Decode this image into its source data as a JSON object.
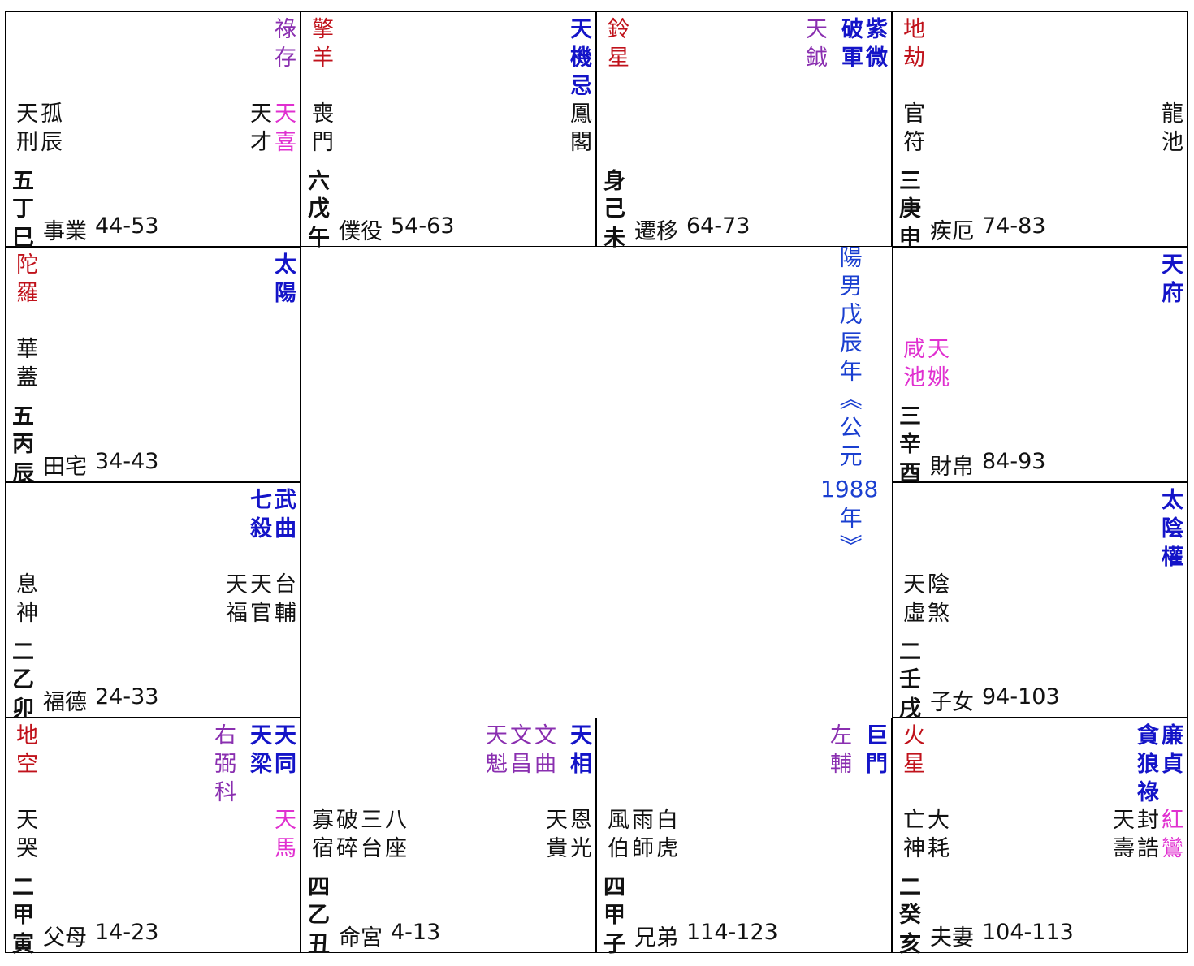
{
  "palaces": [
    {
      "row": 0,
      "col": 0,
      "top_left": [],
      "minor": [
        {
          "name": "祿存",
          "tone": "purple"
        }
      ],
      "major": [],
      "mid_left": [
        {
          "name": "天刑",
          "tone": "black"
        },
        {
          "name": "孤辰",
          "tone": "black"
        }
      ],
      "mid_right": [
        {
          "name": "天才",
          "tone": "black"
        },
        {
          "name": "天喜",
          "tone": "magenta"
        }
      ],
      "ju": "五",
      "stem": "丁",
      "branch": "巳",
      "name": "事業",
      "age": "44-53"
    },
    {
      "row": 0,
      "col": 1,
      "top_left": [
        {
          "name": "擎羊",
          "tone": "red"
        }
      ],
      "minor": [],
      "major": [
        {
          "name": "天機忌",
          "tone": "blue"
        }
      ],
      "mid_left": [
        {
          "name": "喪門",
          "tone": "black"
        }
      ],
      "mid_right": [
        {
          "name": "鳳閣",
          "tone": "black"
        }
      ],
      "ju": "六",
      "stem": "戊",
      "branch": "午",
      "name": "僕役",
      "age": "54-63"
    },
    {
      "row": 0,
      "col": 2,
      "top_left": [
        {
          "name": "鈴星",
          "tone": "red"
        }
      ],
      "minor": [
        {
          "name": "天鉞",
          "tone": "purple"
        }
      ],
      "major": [
        {
          "name": "破軍",
          "tone": "blue"
        },
        {
          "name": "紫微",
          "tone": "blue"
        }
      ],
      "mid_left": [],
      "mid_right": [],
      "ju": "身",
      "stem": "己",
      "branch": "未",
      "name": "遷移",
      "age": "64-73"
    },
    {
      "row": 0,
      "col": 3,
      "top_left": [
        {
          "name": "地劫",
          "tone": "red"
        }
      ],
      "minor": [],
      "major": [],
      "mid_left": [
        {
          "name": "官符",
          "tone": "black"
        }
      ],
      "mid_right": [
        {
          "name": "龍池",
          "tone": "black"
        }
      ],
      "ju": "三",
      "stem": "庚",
      "branch": "申",
      "name": "疾厄",
      "age": "74-83"
    },
    {
      "row": 1,
      "col": 0,
      "top_left": [
        {
          "name": "陀羅",
          "tone": "red"
        }
      ],
      "minor": [],
      "major": [
        {
          "name": "太陽",
          "tone": "blue"
        }
      ],
      "mid_left": [
        {
          "name": "華蓋",
          "tone": "black"
        }
      ],
      "mid_right": [],
      "ju": "五",
      "stem": "丙",
      "branch": "辰",
      "name": "田宅",
      "age": "34-43"
    },
    {
      "row": 1,
      "col": 3,
      "top_left": [],
      "minor": [],
      "major": [
        {
          "name": "天府",
          "tone": "blue"
        }
      ],
      "mid_left": [
        {
          "name": "咸池",
          "tone": "magenta"
        },
        {
          "name": "天姚",
          "tone": "magenta"
        }
      ],
      "mid_right": [],
      "ju": "三",
      "stem": "辛",
      "branch": "酉",
      "name": "財帛",
      "age": "84-93"
    },
    {
      "row": 2,
      "col": 0,
      "top_left": [],
      "minor": [],
      "major": [
        {
          "name": "七殺",
          "tone": "blue"
        },
        {
          "name": "武曲",
          "tone": "blue"
        }
      ],
      "mid_left": [
        {
          "name": "息神",
          "tone": "black"
        }
      ],
      "mid_right": [
        {
          "name": "天福",
          "tone": "black"
        },
        {
          "name": "天官",
          "tone": "black"
        },
        {
          "name": "台輔",
          "tone": "black"
        }
      ],
      "ju": "二",
      "stem": "乙",
      "branch": "卯",
      "name": "福德",
      "age": "24-33"
    },
    {
      "row": 2,
      "col": 3,
      "top_left": [],
      "minor": [],
      "major": [
        {
          "name": "太陰權",
          "tone": "blue"
        }
      ],
      "mid_left": [
        {
          "name": "天虛",
          "tone": "black"
        },
        {
          "name": "陰煞",
          "tone": "black"
        }
      ],
      "mid_right": [],
      "ju": "二",
      "stem": "壬",
      "branch": "戌",
      "name": "子女",
      "age": "94-103"
    },
    {
      "row": 3,
      "col": 0,
      "top_left": [
        {
          "name": "地空",
          "tone": "red"
        }
      ],
      "minor": [
        {
          "name": "右弼科",
          "tone": "purple"
        }
      ],
      "major": [
        {
          "name": "天梁",
          "tone": "blue"
        },
        {
          "name": "天同",
          "tone": "blue"
        }
      ],
      "mid_left": [
        {
          "name": "天哭",
          "tone": "black"
        }
      ],
      "mid_right": [
        {
          "name": "天馬",
          "tone": "magenta"
        }
      ],
      "ju": "二",
      "stem": "甲",
      "branch": "寅",
      "name": "父母",
      "age": "14-23"
    },
    {
      "row": 3,
      "col": 1,
      "top_left": [],
      "minor": [
        {
          "name": "天魁",
          "tone": "purple"
        },
        {
          "name": "文昌",
          "tone": "purple"
        },
        {
          "name": "文曲",
          "tone": "purple"
        }
      ],
      "major": [
        {
          "name": "天相",
          "tone": "blue"
        }
      ],
      "mid_left": [
        {
          "name": "寡宿",
          "tone": "black"
        },
        {
          "name": "破碎",
          "tone": "black"
        },
        {
          "name": "三台",
          "tone": "black"
        },
        {
          "name": "八座",
          "tone": "black"
        }
      ],
      "mid_right": [
        {
          "name": "天貴",
          "tone": "black"
        },
        {
          "name": "恩光",
          "tone": "black"
        }
      ],
      "ju": "四",
      "stem": "乙",
      "branch": "丑",
      "name": "命宮",
      "age": "4-13"
    },
    {
      "row": 3,
      "col": 2,
      "top_left": [],
      "minor": [
        {
          "name": "左輔",
          "tone": "purple"
        }
      ],
      "major": [
        {
          "name": "巨門",
          "tone": "blue"
        }
      ],
      "mid_left": [
        {
          "name": "風伯",
          "tone": "black"
        },
        {
          "name": "雨師",
          "tone": "black"
        },
        {
          "name": "白虎",
          "tone": "black"
        }
      ],
      "mid_right": [],
      "ju": "四",
      "stem": "甲",
      "branch": "子",
      "name": "兄弟",
      "age": "114-123"
    },
    {
      "row": 3,
      "col": 3,
      "top_left": [
        {
          "name": "火星",
          "tone": "red"
        }
      ],
      "minor": [],
      "major": [
        {
          "name": "貪狼祿",
          "tone": "blue"
        },
        {
          "name": "廉貞",
          "tone": "blue"
        }
      ],
      "mid_left": [
        {
          "name": "亡神",
          "tone": "black"
        },
        {
          "name": "大耗",
          "tone": "black"
        }
      ],
      "mid_right": [
        {
          "name": "天壽",
          "tone": "black"
        },
        {
          "name": "封誥",
          "tone": "black"
        },
        {
          "name": "紅鸞",
          "tone": "magenta"
        }
      ],
      "ju": "二",
      "stem": "癸",
      "branch": "亥",
      "name": "夫妻",
      "age": "104-113"
    }
  ],
  "center": [
    "陽男戊辰年《公元",
    "1988",
    "年》"
  ]
}
